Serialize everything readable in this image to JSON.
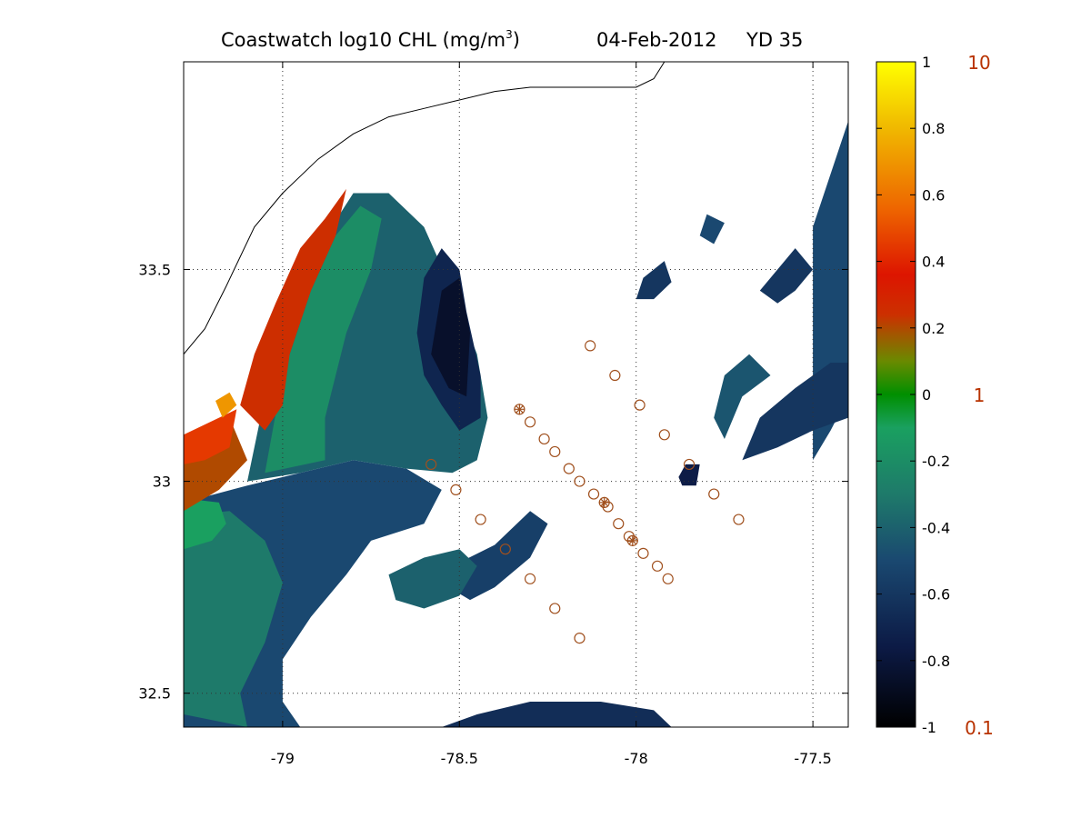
{
  "title": {
    "main": "Coastwatch  log10  CHL (mg/m",
    "sup": "3",
    "close": ")",
    "date": "04-Feb-2012",
    "yearday": "YD 35"
  },
  "chart_data": {
    "type": "heatmap",
    "title": "Coastwatch log10 CHL (mg/m3) 04-Feb-2012 YD 35",
    "xlim": [
      -79.28,
      -77.4
    ],
    "ylim": [
      32.42,
      33.99
    ],
    "x_ticks": [
      -79,
      -78.5,
      -78,
      -77.5
    ],
    "x_tick_labels": [
      "-79",
      "-78.5",
      "-78",
      "-77.5"
    ],
    "y_ticks": [
      32.5,
      33,
      33.5
    ],
    "y_tick_labels": [
      "32.5",
      "33",
      "33.5"
    ],
    "grid": "dotted",
    "colorbar": {
      "range": [
        -1,
        1
      ],
      "ticks": [
        1,
        0.8,
        0.6,
        0.4,
        0.2,
        0,
        -0.2,
        -0.4,
        -0.6,
        -0.8,
        -1
      ],
      "tick_labels": [
        "1",
        "0.8",
        "0.6",
        "0.4",
        "0.2",
        "0",
        "-0.2",
        "-0.4",
        "-0.6",
        "-0.8",
        "-1"
      ],
      "linear_labels": [
        {
          "value": 1,
          "label": "10"
        },
        {
          "value": 0,
          "label": "1"
        },
        {
          "value": -1,
          "label": "0.1"
        }
      ],
      "linear_label_color": "#b83200"
    },
    "station_marker_color": "#a0501e",
    "stations": [
      {
        "lon": -78.33,
        "lat": 33.17,
        "star": true
      },
      {
        "lon": -78.3,
        "lat": 33.14,
        "star": false
      },
      {
        "lon": -78.26,
        "lat": 33.1,
        "star": false
      },
      {
        "lon": -78.23,
        "lat": 33.07,
        "star": false
      },
      {
        "lon": -78.19,
        "lat": 33.03,
        "star": false
      },
      {
        "lon": -78.16,
        "lat": 33.0,
        "star": false
      },
      {
        "lon": -78.12,
        "lat": 32.97,
        "star": false
      },
      {
        "lon": -78.09,
        "lat": 32.95,
        "star": true
      },
      {
        "lon": -78.08,
        "lat": 32.94,
        "star": false
      },
      {
        "lon": -78.05,
        "lat": 32.9,
        "star": false
      },
      {
        "lon": -78.02,
        "lat": 32.87,
        "star": false
      },
      {
        "lon": -78.01,
        "lat": 32.86,
        "star": true
      },
      {
        "lon": -77.98,
        "lat": 32.83,
        "star": false
      },
      {
        "lon": -77.94,
        "lat": 32.8,
        "star": false
      },
      {
        "lon": -77.91,
        "lat": 32.77,
        "star": false
      },
      {
        "lon": -78.13,
        "lat": 33.32,
        "star": false
      },
      {
        "lon": -78.06,
        "lat": 33.25,
        "star": false
      },
      {
        "lon": -77.99,
        "lat": 33.18,
        "star": false
      },
      {
        "lon": -77.92,
        "lat": 33.11,
        "star": false
      },
      {
        "lon": -77.85,
        "lat": 33.04,
        "star": false
      },
      {
        "lon": -77.78,
        "lat": 32.97,
        "star": false
      },
      {
        "lon": -77.71,
        "lat": 32.91,
        "star": false
      },
      {
        "lon": -78.58,
        "lat": 33.04,
        "star": false
      },
      {
        "lon": -78.51,
        "lat": 32.98,
        "star": false
      },
      {
        "lon": -78.44,
        "lat": 32.91,
        "star": false
      },
      {
        "lon": -78.37,
        "lat": 32.84,
        "star": false
      },
      {
        "lon": -78.3,
        "lat": 32.77,
        "star": false
      },
      {
        "lon": -78.23,
        "lat": 32.7,
        "star": false
      },
      {
        "lon": -78.16,
        "lat": 32.63,
        "star": false
      }
    ],
    "chlorophyll_patches": [
      {
        "value": -0.5,
        "poly": [
          [
            -79.28,
            32.42
          ],
          [
            -79.28,
            32.95
          ],
          [
            -79.1,
            32.99
          ],
          [
            -78.95,
            33.02
          ],
          [
            -78.8,
            33.05
          ],
          [
            -78.65,
            33.03
          ],
          [
            -78.55,
            32.98
          ],
          [
            -78.6,
            32.9
          ],
          [
            -78.75,
            32.86
          ],
          [
            -78.82,
            32.78
          ],
          [
            -78.92,
            32.68
          ],
          [
            -79.0,
            32.58
          ],
          [
            -79.0,
            32.48
          ],
          [
            -78.95,
            32.42
          ]
        ]
      },
      {
        "value": -0.3,
        "poly": [
          [
            -79.28,
            32.45
          ],
          [
            -79.28,
            32.92
          ],
          [
            -79.15,
            32.93
          ],
          [
            -79.05,
            32.86
          ],
          [
            -79.0,
            32.76
          ],
          [
            -79.05,
            32.62
          ],
          [
            -79.12,
            32.5
          ],
          [
            -79.1,
            32.42
          ]
        ]
      },
      {
        "value": -0.1,
        "poly": [
          [
            -79.28,
            32.84
          ],
          [
            -79.28,
            32.96
          ],
          [
            -79.18,
            32.95
          ],
          [
            -79.16,
            32.9
          ],
          [
            -79.2,
            32.86
          ]
        ]
      },
      {
        "value": 0.2,
        "poly": [
          [
            -79.28,
            32.93
          ],
          [
            -79.28,
            33.1
          ],
          [
            -79.15,
            33.15
          ],
          [
            -79.1,
            33.05
          ],
          [
            -79.18,
            32.98
          ]
        ]
      },
      {
        "value": 0.45,
        "poly": [
          [
            -79.28,
            33.04
          ],
          [
            -79.28,
            33.11
          ],
          [
            -79.18,
            33.15
          ],
          [
            -79.13,
            33.17
          ],
          [
            -79.15,
            33.08
          ],
          [
            -79.22,
            33.05
          ]
        ]
      },
      {
        "value": 0.7,
        "poly": [
          [
            -79.17,
            33.15
          ],
          [
            -79.13,
            33.18
          ],
          [
            -79.15,
            33.21
          ],
          [
            -79.19,
            33.19
          ]
        ]
      },
      {
        "value": -0.4,
        "poly": [
          [
            -79.1,
            33.0
          ],
          [
            -79.05,
            33.2
          ],
          [
            -78.98,
            33.4
          ],
          [
            -78.9,
            33.55
          ],
          [
            -78.8,
            33.68
          ],
          [
            -78.7,
            33.68
          ],
          [
            -78.6,
            33.6
          ],
          [
            -78.52,
            33.45
          ],
          [
            -78.45,
            33.3
          ],
          [
            -78.42,
            33.15
          ],
          [
            -78.45,
            33.05
          ],
          [
            -78.52,
            33.02
          ],
          [
            -78.65,
            33.03
          ],
          [
            -78.8,
            33.05
          ],
          [
            -78.95,
            33.02
          ]
        ]
      },
      {
        "value": -0.2,
        "poly": [
          [
            -79.05,
            33.02
          ],
          [
            -79.0,
            33.25
          ],
          [
            -78.92,
            33.45
          ],
          [
            -78.85,
            33.58
          ],
          [
            -78.78,
            33.65
          ],
          [
            -78.72,
            33.62
          ],
          [
            -78.75,
            33.5
          ],
          [
            -78.82,
            33.35
          ],
          [
            -78.88,
            33.15
          ],
          [
            -78.88,
            33.05
          ]
        ]
      },
      {
        "value": 0.25,
        "poly": [
          [
            -79.12,
            33.18
          ],
          [
            -79.08,
            33.3
          ],
          [
            -79.02,
            33.42
          ],
          [
            -78.95,
            33.55
          ],
          [
            -78.88,
            33.62
          ],
          [
            -78.82,
            33.69
          ],
          [
            -78.85,
            33.58
          ],
          [
            -78.92,
            33.45
          ],
          [
            -78.98,
            33.3
          ],
          [
            -79.0,
            33.18
          ],
          [
            -79.05,
            33.12
          ]
        ]
      },
      {
        "value": -0.7,
        "poly": [
          [
            -78.62,
            33.35
          ],
          [
            -78.6,
            33.48
          ],
          [
            -78.55,
            33.55
          ],
          [
            -78.5,
            33.5
          ],
          [
            -78.48,
            33.4
          ],
          [
            -78.44,
            33.25
          ],
          [
            -78.44,
            33.15
          ],
          [
            -78.5,
            33.12
          ],
          [
            -78.55,
            33.18
          ],
          [
            -78.6,
            33.25
          ]
        ]
      },
      {
        "value": -0.85,
        "poly": [
          [
            -78.58,
            33.3
          ],
          [
            -78.55,
            33.45
          ],
          [
            -78.5,
            33.48
          ],
          [
            -78.47,
            33.35
          ],
          [
            -78.48,
            33.2
          ],
          [
            -78.53,
            33.22
          ]
        ]
      },
      {
        "value": -0.55,
        "poly": [
          [
            -78.52,
            32.8
          ],
          [
            -78.4,
            32.85
          ],
          [
            -78.3,
            32.93
          ],
          [
            -78.25,
            32.9
          ],
          [
            -78.3,
            32.82
          ],
          [
            -78.4,
            32.75
          ],
          [
            -78.47,
            32.72
          ],
          [
            -78.55,
            32.76
          ]
        ]
      },
      {
        "value": -0.4,
        "poly": [
          [
            -78.7,
            32.78
          ],
          [
            -78.6,
            32.82
          ],
          [
            -78.5,
            32.84
          ],
          [
            -78.45,
            32.8
          ],
          [
            -78.5,
            32.73
          ],
          [
            -78.6,
            32.7
          ],
          [
            -78.68,
            32.72
          ]
        ]
      },
      {
        "value": -0.65,
        "poly": [
          [
            -78.55,
            32.42
          ],
          [
            -78.45,
            32.45
          ],
          [
            -78.3,
            32.48
          ],
          [
            -78.1,
            32.48
          ],
          [
            -77.95,
            32.46
          ],
          [
            -77.9,
            32.42
          ]
        ]
      },
      {
        "value": -0.5,
        "poly": [
          [
            -77.5,
            33.05
          ],
          [
            -77.5,
            33.6
          ],
          [
            -77.4,
            33.85
          ],
          [
            -77.4,
            33.2
          ],
          [
            -77.45,
            33.12
          ]
        ]
      },
      {
        "value": -0.6,
        "poly": [
          [
            -77.7,
            33.05
          ],
          [
            -77.65,
            33.15
          ],
          [
            -77.55,
            33.22
          ],
          [
            -77.45,
            33.28
          ],
          [
            -77.4,
            33.28
          ],
          [
            -77.4,
            33.15
          ],
          [
            -77.5,
            33.12
          ],
          [
            -77.6,
            33.08
          ]
        ]
      },
      {
        "value": -0.45,
        "poly": [
          [
            -77.75,
            33.1
          ],
          [
            -77.7,
            33.2
          ],
          [
            -77.62,
            33.25
          ],
          [
            -77.68,
            33.3
          ],
          [
            -77.75,
            33.25
          ],
          [
            -77.78,
            33.15
          ]
        ]
      },
      {
        "value": -0.6,
        "poly": [
          [
            -78.0,
            33.43
          ],
          [
            -77.98,
            33.48
          ],
          [
            -77.92,
            33.52
          ],
          [
            -77.9,
            33.47
          ],
          [
            -77.95,
            33.43
          ]
        ]
      },
      {
        "value": -0.5,
        "poly": [
          [
            -77.82,
            33.58
          ],
          [
            -77.8,
            33.63
          ],
          [
            -77.75,
            33.61
          ],
          [
            -77.78,
            33.56
          ]
        ]
      },
      {
        "value": -0.75,
        "poly": [
          [
            -77.88,
            33.01
          ],
          [
            -77.86,
            33.04
          ],
          [
            -77.82,
            33.04
          ],
          [
            -77.83,
            32.99
          ],
          [
            -77.87,
            32.99
          ]
        ]
      },
      {
        "value": -0.6,
        "poly": [
          [
            -77.65,
            33.45
          ],
          [
            -77.6,
            33.5
          ],
          [
            -77.55,
            33.55
          ],
          [
            -77.5,
            33.5
          ],
          [
            -77.55,
            33.45
          ],
          [
            -77.6,
            33.42
          ]
        ]
      }
    ],
    "coastline": [
      [
        -79.28,
        33.3
      ],
      [
        -79.22,
        33.36
      ],
      [
        -79.16,
        33.46
      ],
      [
        -79.08,
        33.6
      ],
      [
        -79.0,
        33.68
      ],
      [
        -78.9,
        33.76
      ],
      [
        -78.8,
        33.82
      ],
      [
        -78.7,
        33.86
      ],
      [
        -78.6,
        33.88
      ],
      [
        -78.5,
        33.9
      ],
      [
        -78.4,
        33.92
      ],
      [
        -78.3,
        33.93
      ],
      [
        -78.2,
        33.93
      ],
      [
        -78.1,
        33.93
      ],
      [
        -78.0,
        33.93
      ],
      [
        -77.95,
        33.95
      ],
      [
        -77.92,
        33.99
      ]
    ]
  }
}
